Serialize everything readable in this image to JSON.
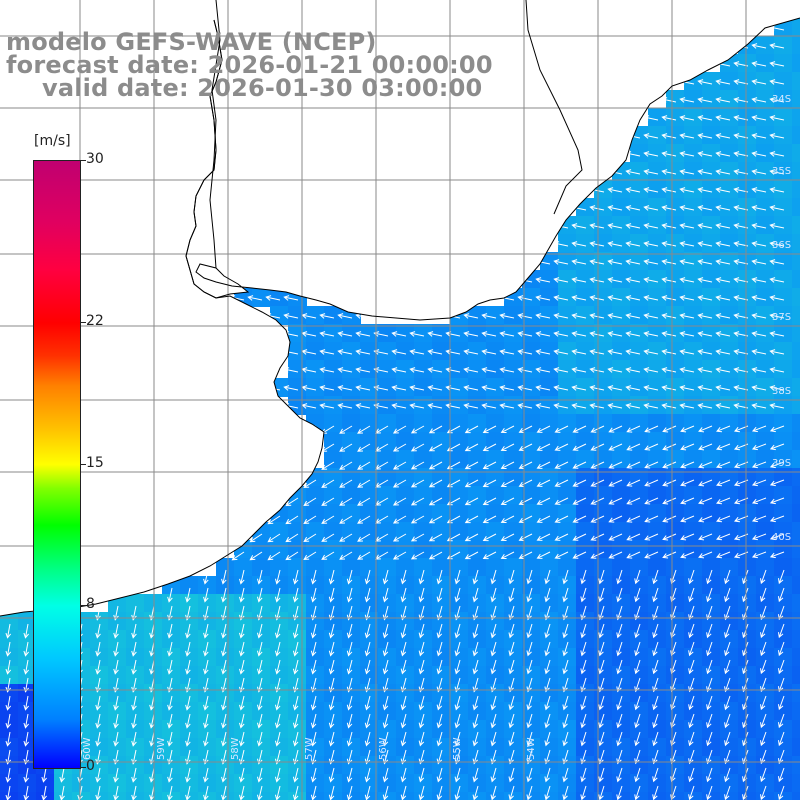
{
  "title": {
    "line1": "modelo GEFS-WAVE (NCEP)",
    "line2": "forecast date: 2026-01-21 00:00:00",
    "line3": "valid date: 2026-01-30 03:00:00"
  },
  "legend": {
    "unit": "[m/s]",
    "ticks": [
      {
        "value": 30,
        "label": "30"
      },
      {
        "value": 22,
        "label": "22"
      },
      {
        "value": 15,
        "label": "15"
      },
      {
        "value": 8,
        "label": "8"
      },
      {
        "value": 0,
        "label": "0"
      }
    ],
    "min": 0,
    "max": 30
  },
  "colors": {
    "land": "#ffffff",
    "coastline": "#000000",
    "grid": "#8a8a8a",
    "arrows": "#ffffff",
    "title_text": "#8c8c8c",
    "field_low": "#0a3cf0",
    "field_mid": "#0a96f5",
    "field_high": "#1ee6c8"
  },
  "map": {
    "field": "wind speed",
    "arrow_direction_nw": "southwest",
    "arrow_direction_south": "south",
    "edge_labels_right": [
      "34S",
      "35S",
      "36S",
      "37S",
      "38S",
      "39S",
      "40S"
    ],
    "edge_labels_bottom": [
      "60W",
      "59W",
      "58W",
      "57W",
      "56W",
      "55W",
      "54W"
    ]
  }
}
